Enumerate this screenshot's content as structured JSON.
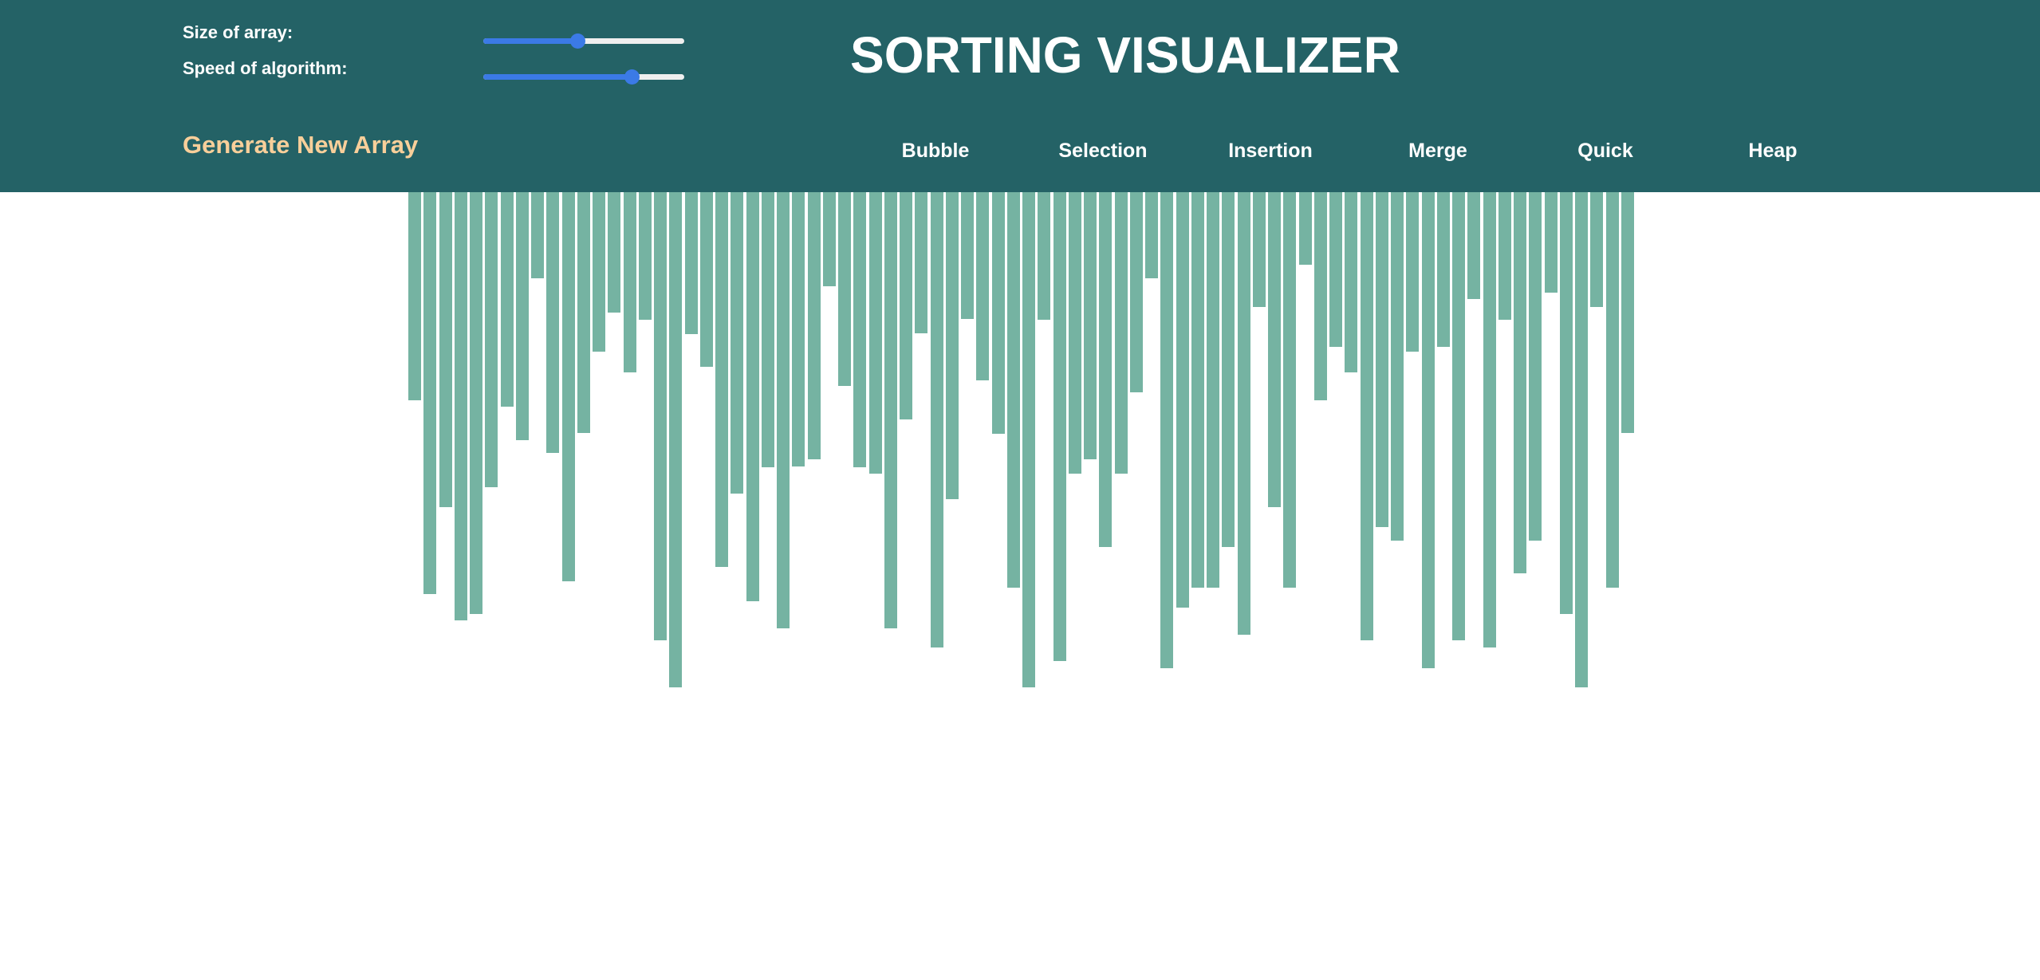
{
  "header": {
    "title": "SORTING VISUALIZER",
    "size_label": "Size of array:",
    "speed_label": "Speed of algorithm:",
    "size_slider_value": 0.47,
    "speed_slider_value": 0.74,
    "generate_label": "Generate New Array",
    "algorithms": [
      "Bubble",
      "Selection",
      "Insertion",
      "Merge",
      "Quick",
      "Heap"
    ]
  },
  "colors": {
    "header_bg": "#246266",
    "accent_orange": "#f8cf9a",
    "bar": "#75b3a2",
    "slider": "#3b7ae6"
  },
  "array": {
    "count": 80,
    "values": [
      261,
      504,
      395,
      537,
      529,
      370,
      269,
      311,
      108,
      327,
      488,
      302,
      200,
      151,
      226,
      160,
      562,
      621,
      178,
      219,
      470,
      378,
      513,
      345,
      547,
      344,
      335,
      118,
      243,
      345,
      353,
      547,
      285,
      177,
      571,
      385,
      159,
      236,
      303,
      496,
      621,
      160,
      588,
      353,
      335,
      445,
      353,
      251,
      108,
      597,
      521,
      496,
      496,
      445,
      555,
      144,
      395,
      496,
      91,
      261,
      194,
      226,
      562,
      420,
      437,
      200,
      597,
      194,
      562,
      134,
      571,
      160,
      478,
      437,
      126,
      529,
      621,
      144,
      496,
      302
    ]
  }
}
